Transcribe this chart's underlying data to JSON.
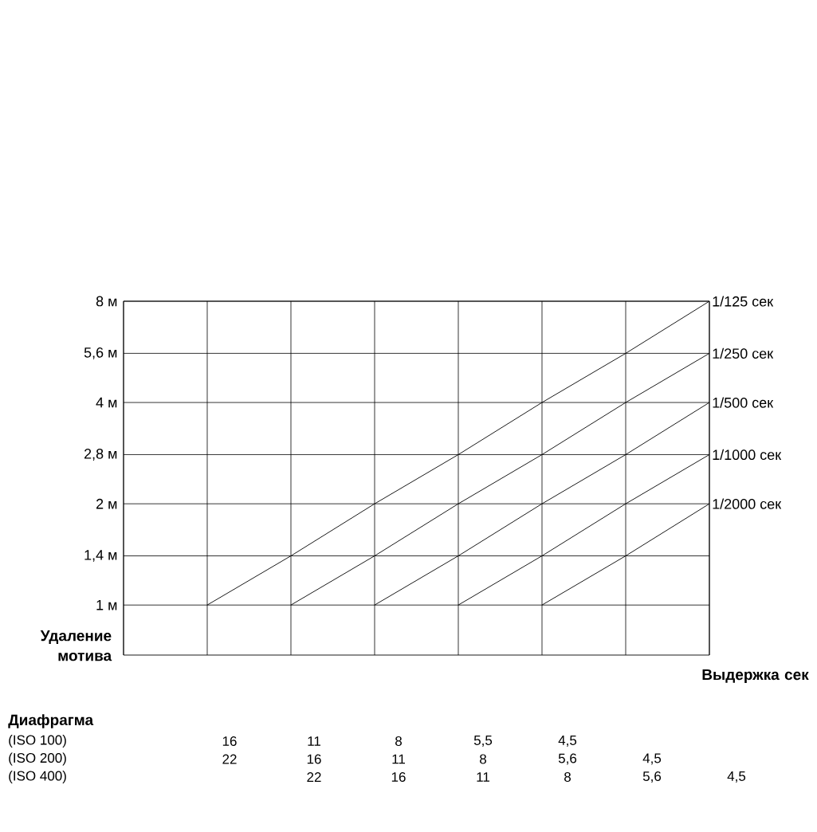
{
  "chart_data": {
    "type": "line",
    "xlabel": "Выдержка сек",
    "ylabel": "Удаление мотива",
    "categories": [
      null,
      null,
      null,
      null,
      null,
      null,
      null,
      null
    ],
    "ylim": [
      0.71,
      8
    ],
    "yticks": [
      {
        "value": 1,
        "label": "1 м"
      },
      {
        "value": 1.4,
        "label": "1,4 м"
      },
      {
        "value": 2,
        "label": "2 м"
      },
      {
        "value": 2.8,
        "label": "2,8 м"
      },
      {
        "value": 4,
        "label": "4 м"
      },
      {
        "value": 5.6,
        "label": "5,6 м"
      },
      {
        "value": 8,
        "label": "8 м"
      }
    ],
    "log": "y",
    "grid": true,
    "tick_labels": "y",
    "marker": "none",
    "line_style": "solid",
    "series": [
      {
        "name": "1/125 сек",
        "color": "#000000",
        "values": [
          null,
          1,
          1.4,
          2,
          2.8,
          4,
          5.6,
          8
        ]
      },
      {
        "name": "1/250 сек",
        "color": "#000000",
        "values": [
          null,
          null,
          1,
          1.4,
          2,
          2.8,
          4,
          5.6
        ]
      },
      {
        "name": "1/500 сек",
        "color": "#000000",
        "values": [
          null,
          null,
          null,
          1,
          1.4,
          2,
          2.8,
          4
        ]
      },
      {
        "name": "1/1000 сек",
        "color": "#000000",
        "values": [
          null,
          null,
          null,
          null,
          1,
          1.4,
          2,
          2.8
        ]
      },
      {
        "name": "1/2000 сек",
        "color": "#000000",
        "values": [
          null,
          null,
          null,
          null,
          null,
          1,
          1.4,
          2
        ]
      }
    ],
    "annotations": [
      "Диафрагма",
      "(ISO 100)",
      "16",
      "11",
      "8",
      "5,5",
      "4,5",
      "(ISO 200)",
      "22",
      "16",
      "11",
      "8",
      "5,6",
      "4,5",
      "(ISO 400)",
      "22",
      "16",
      "11",
      "8",
      "5,6",
      "4,5"
    ]
  }
}
